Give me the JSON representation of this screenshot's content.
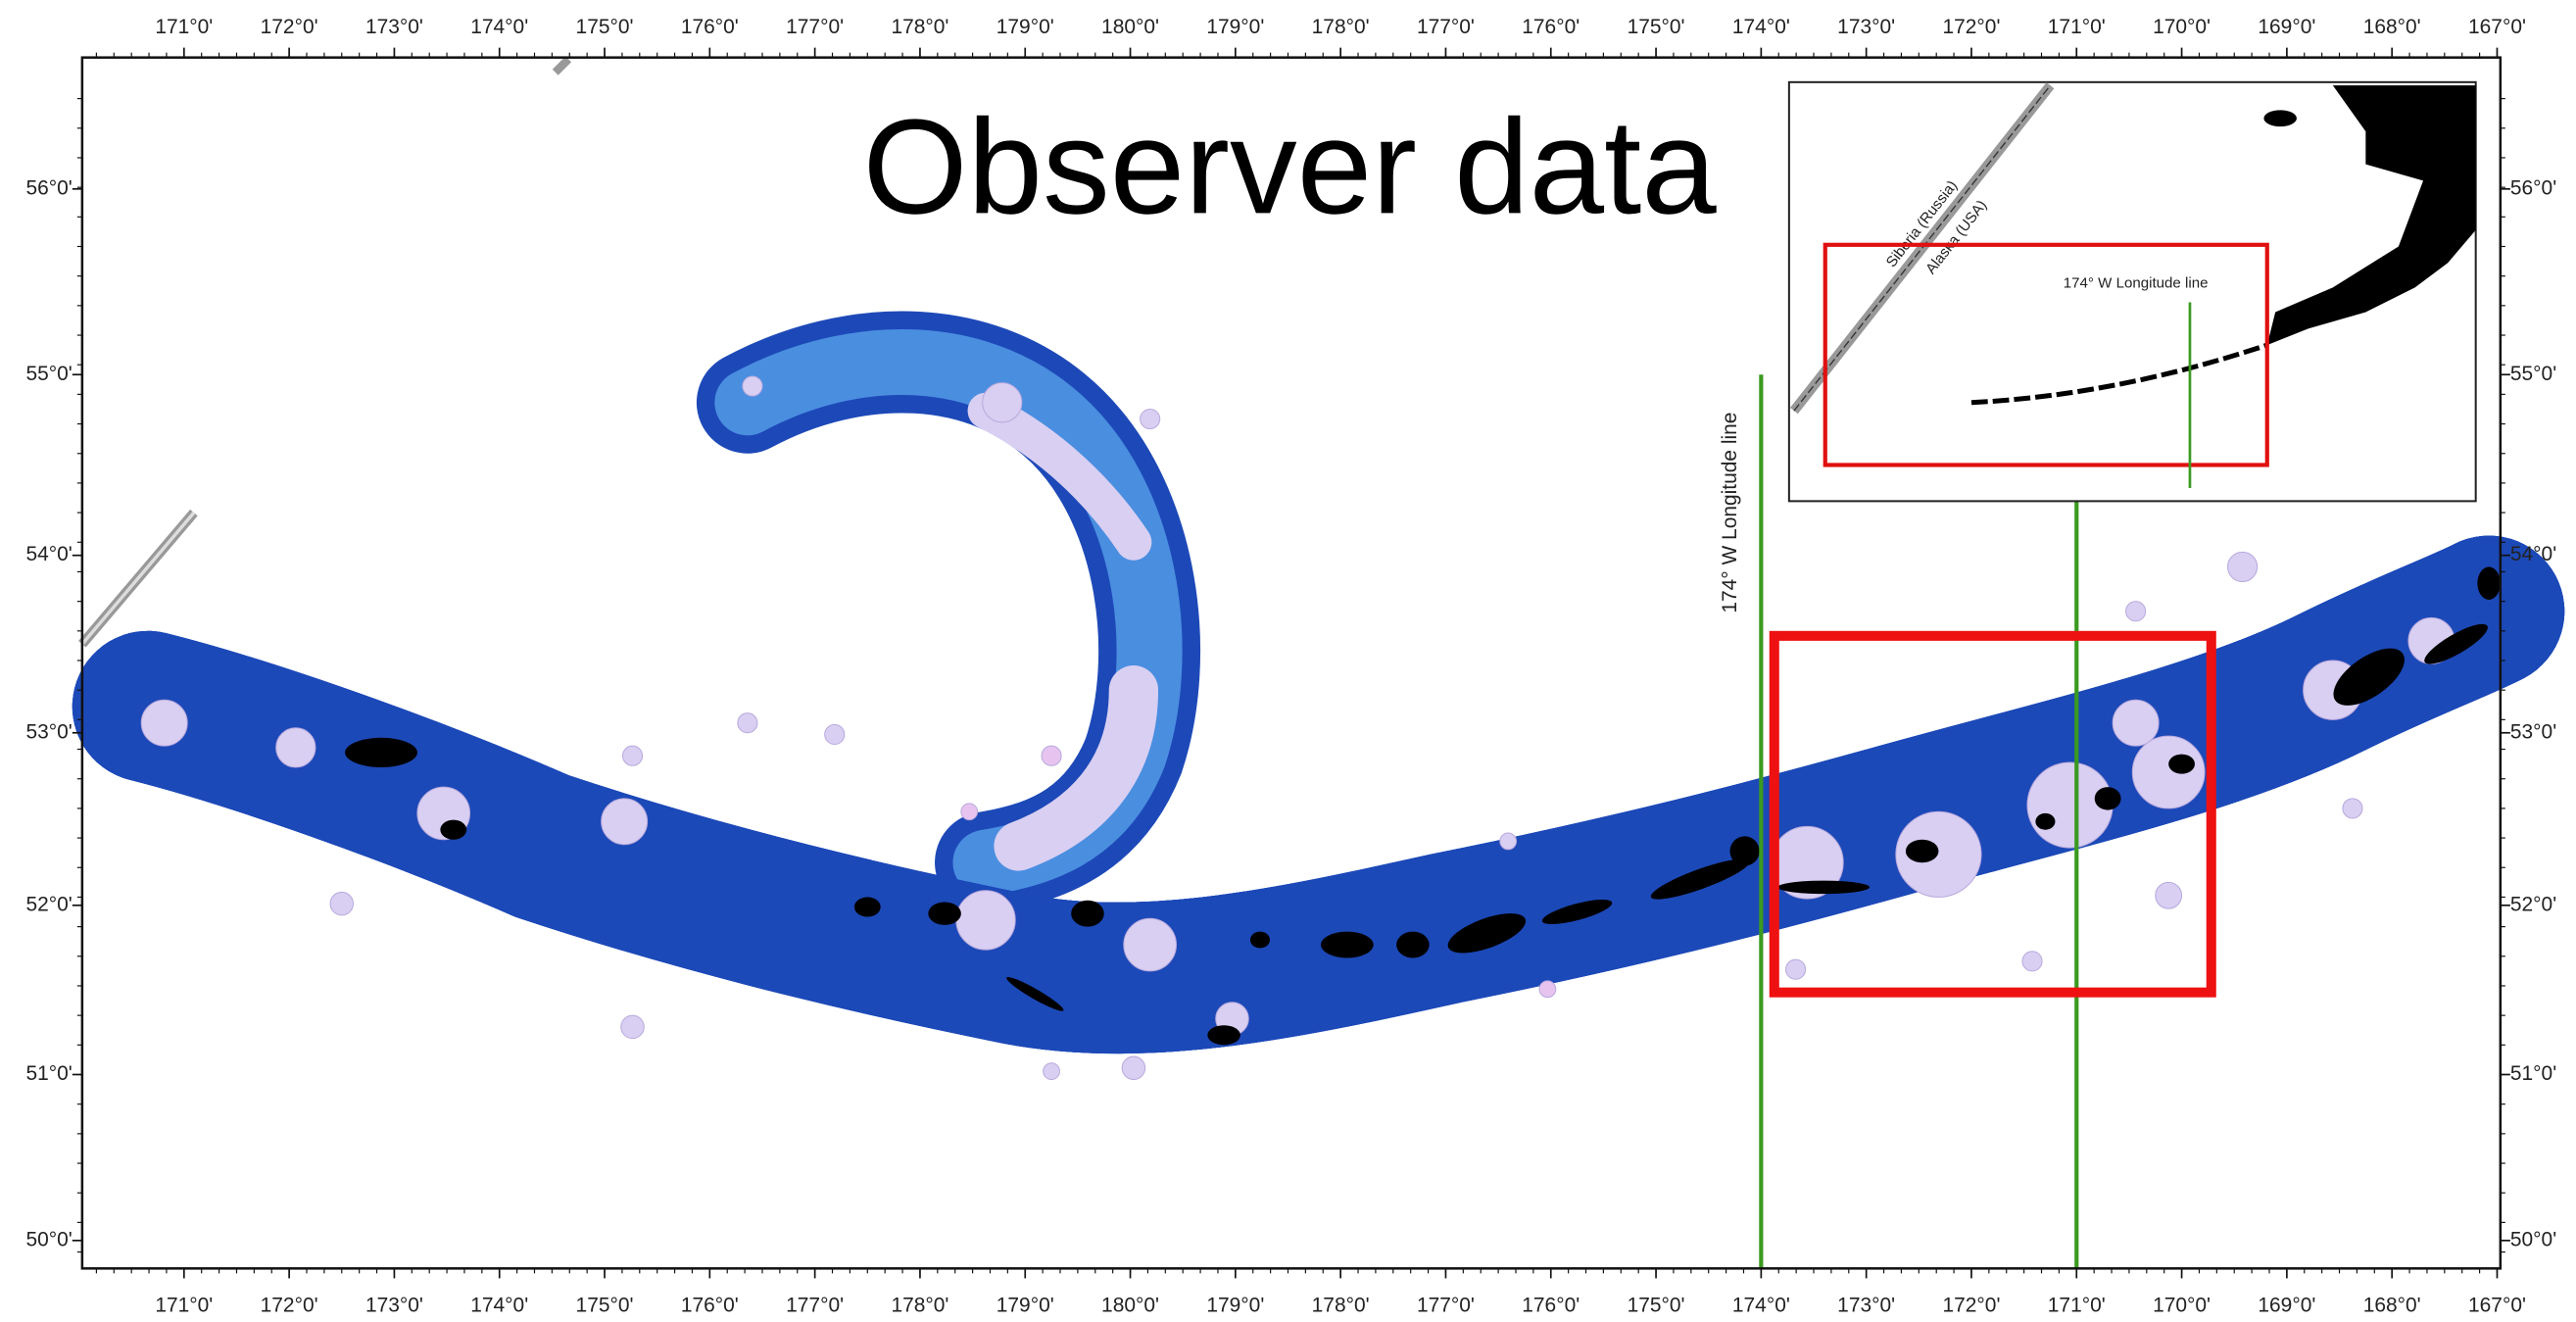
{
  "title": "Observer data",
  "map": {
    "longitude_labels": [
      "171°0'",
      "172°0'",
      "173°0'",
      "174°0'",
      "175°0'",
      "176°0'",
      "177°0'",
      "178°0'",
      "179°0'",
      "180°0'",
      "179°0'",
      "178°0'",
      "177°0'",
      "176°0'",
      "175°0'",
      "174°0'",
      "173°0'",
      "172°0'",
      "171°0'",
      "170°0'",
      "169°0'",
      "168°0'",
      "167°0'"
    ],
    "latitude_labels": [
      "56°0'",
      "55°0'",
      "54°0'",
      "53°0'",
      "52°0'",
      "51°0'",
      "50°0'"
    ],
    "longitude_line_label": "174° W Longitude line",
    "inset": {
      "labels": [
        "Siberia (Russia)",
        "Alaska (USA)"
      ],
      "longitude_line_label": "174° W Longitude line"
    }
  }
}
